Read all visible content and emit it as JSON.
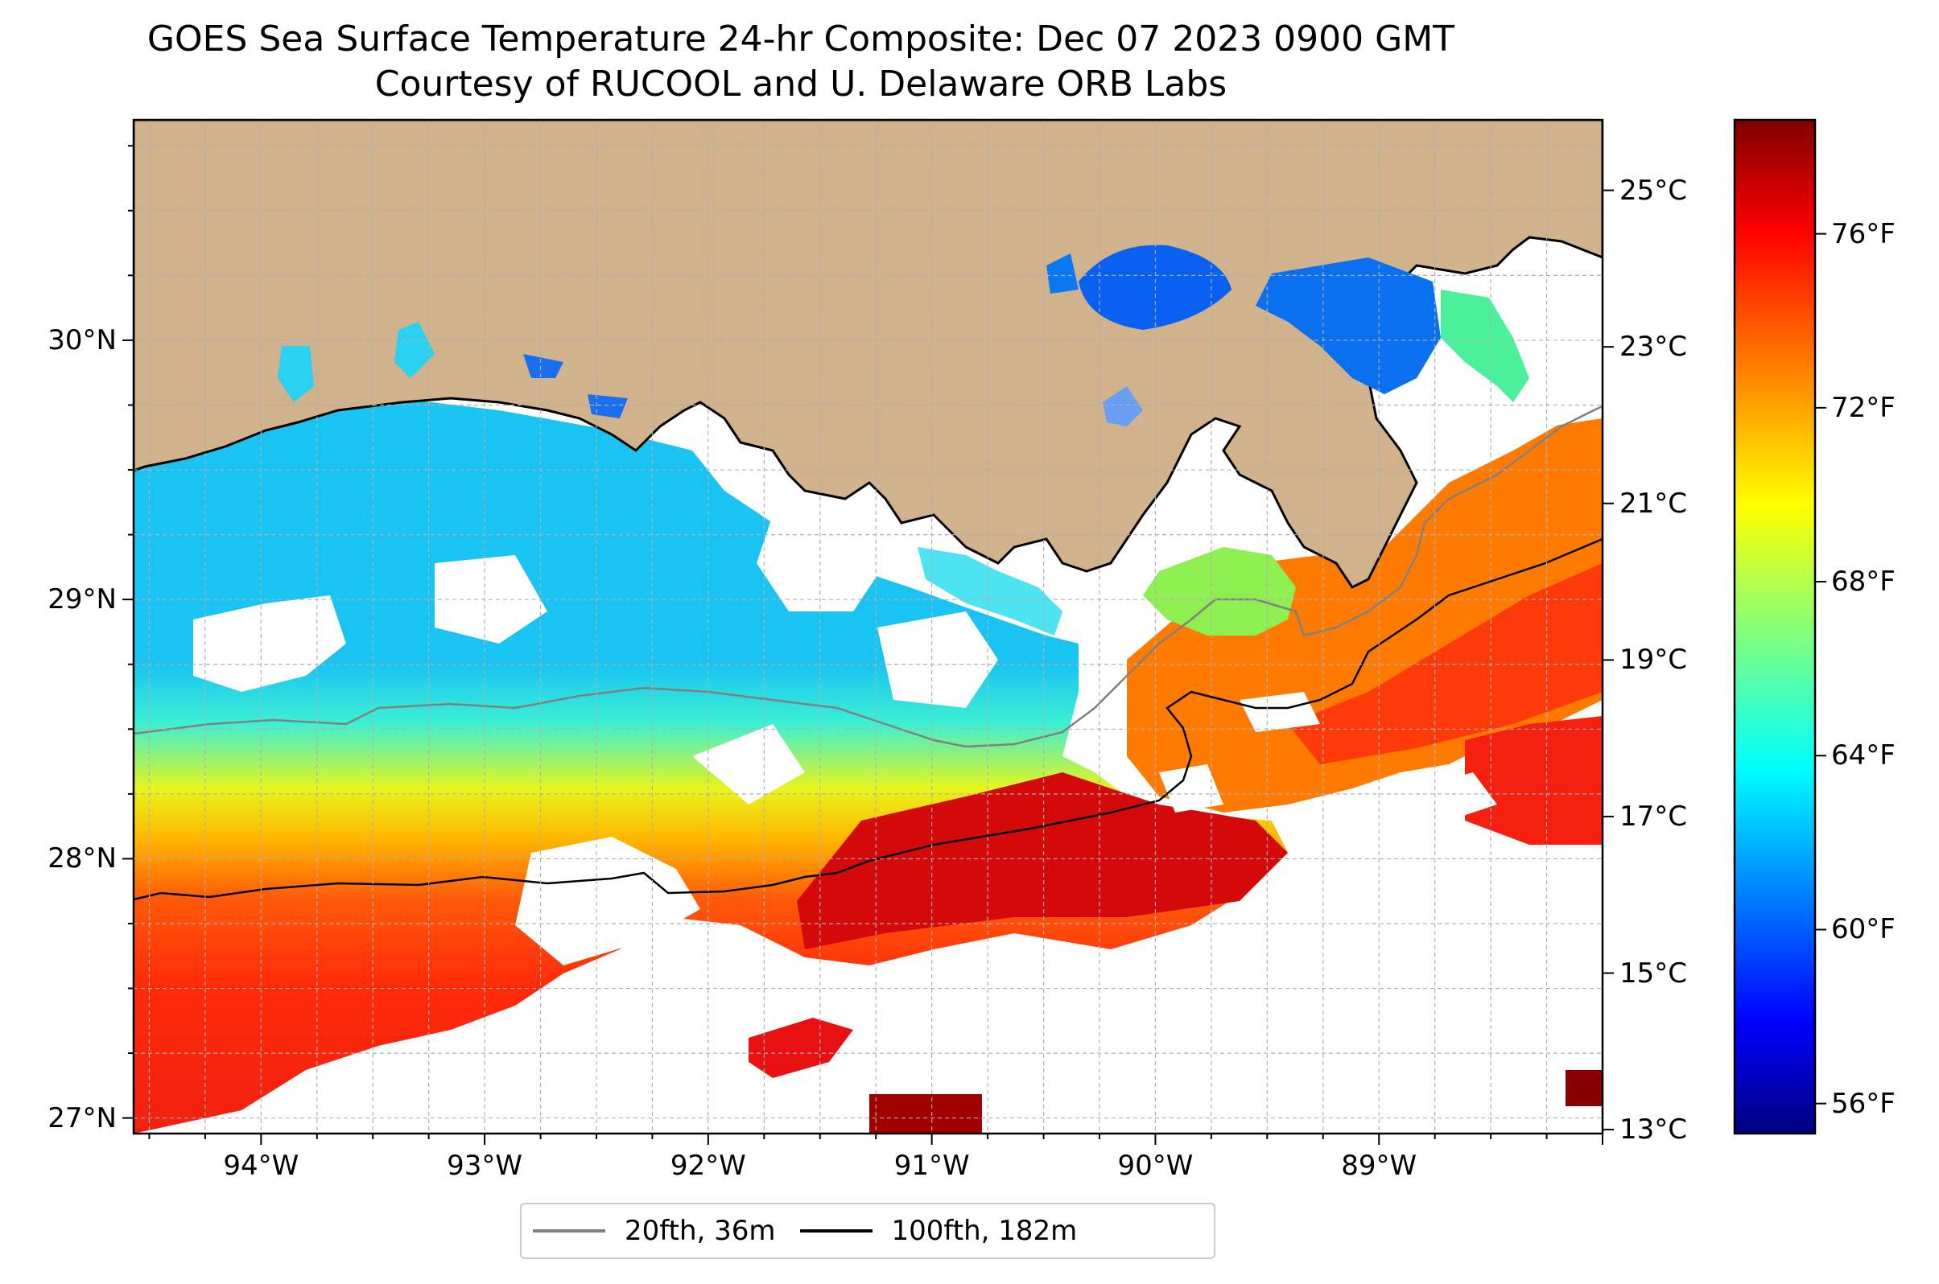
{
  "title_line1": "GOES Sea Surface Temperature 24-hr Composite: Dec 07 2023 0900 GMT",
  "title_line2": "Courtesy of RUCOOL and U. Delaware ORB Labs",
  "map": {
    "lon_labels": [
      "94°W",
      "93°W",
      "92°W",
      "91°W",
      "90°W",
      "89°W"
    ],
    "lon_values": [
      -94,
      -93,
      -92,
      -91,
      -90,
      -89
    ],
    "lat_labels": [
      "30°N",
      "29°N",
      "28°N",
      "27°N"
    ],
    "lat_values": [
      30,
      29,
      28,
      27
    ],
    "lon_range": [
      -94.57,
      -88.0
    ],
    "lat_range": [
      26.94,
      30.85
    ],
    "land_color": "#d0b28c",
    "no_data_color": "#ffffff",
    "gridlines": "dashed",
    "colormap": "jet"
  },
  "colorbar": {
    "celsius_labels": [
      "25°C",
      "23°C",
      "21°C",
      "19°C",
      "17°C",
      "15°C",
      "13°C"
    ],
    "celsius_values": [
      25,
      23,
      21,
      19,
      17,
      15,
      13
    ],
    "fahrenheit_labels": [
      "76°F",
      "72°F",
      "68°F",
      "64°F",
      "60°F",
      "56°F"
    ],
    "fahrenheit_values": [
      76,
      72,
      68,
      64,
      60,
      56
    ],
    "range_c": [
      12.95,
      25.9
    ]
  },
  "legend": {
    "items": [
      {
        "label": "20fth, 36m",
        "color": "#808080"
      },
      {
        "label": "100fth, 182m",
        "color": "#000000"
      }
    ],
    "placement": "bottom-center"
  }
}
